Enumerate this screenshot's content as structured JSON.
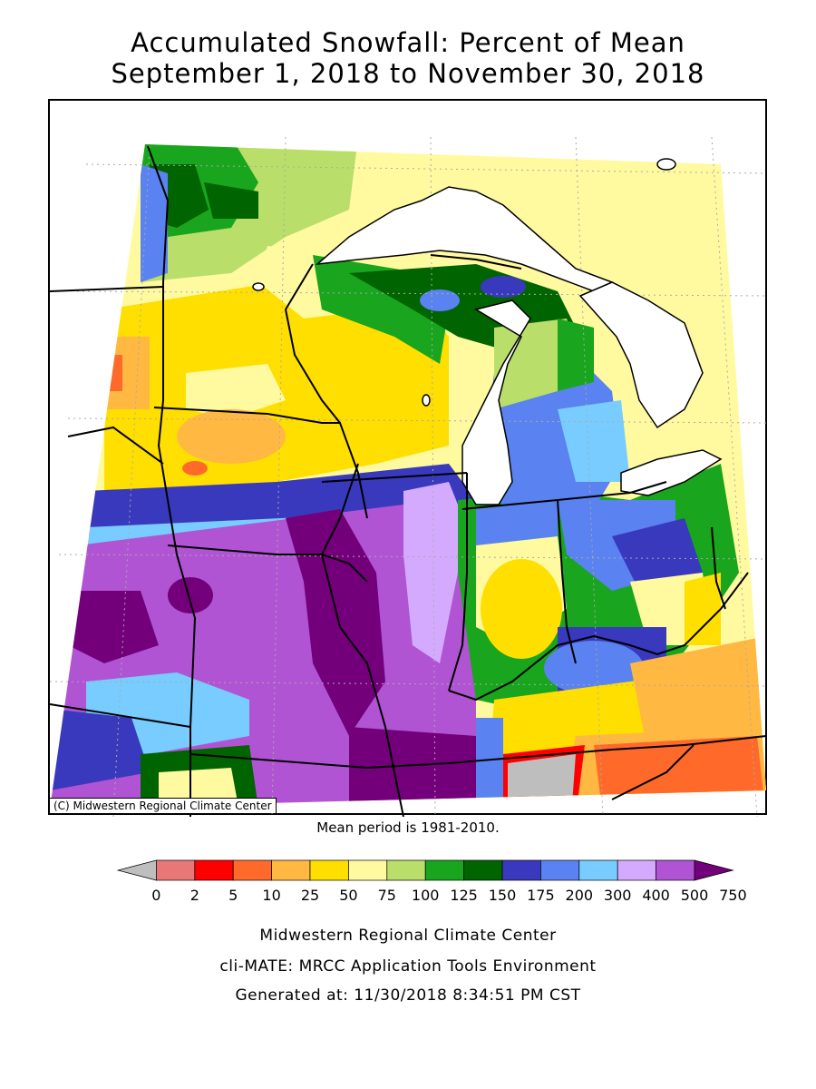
{
  "title": {
    "line1": "Accumulated Snowfall: Percent of Mean",
    "line2": "September 1, 2018 to November 30, 2018"
  },
  "map": {
    "credit": "(C) Midwestern Regional Climate Center",
    "mean_period": "Mean period is 1981-2010."
  },
  "legend": {
    "tick_labels": [
      "0",
      "2",
      "5",
      "10",
      "25",
      "50",
      "75",
      "100",
      "125",
      "150",
      "175",
      "200",
      "300",
      "400",
      "500",
      "750"
    ],
    "colors": [
      "#bebebe",
      "#e87878",
      "#ff0000",
      "#ff6a2a",
      "#ffb841",
      "#ffdf00",
      "#fffaa0",
      "#b9de6a",
      "#19a51d",
      "#006400",
      "#3939be",
      "#5a82f0",
      "#78ccff",
      "#d4aaff",
      "#b054d4",
      "#73007a"
    ]
  },
  "colors": {
    "state_border": "#000000",
    "lake_fill": "#ffffff",
    "grid": "#aaaaaa"
  },
  "footer": {
    "line1": "Midwestern Regional Climate Center",
    "line2": "cli-MATE: MRCC Application Tools Environment",
    "line3": "Generated at: 11/30/2018 8:34:51 PM CST"
  }
}
